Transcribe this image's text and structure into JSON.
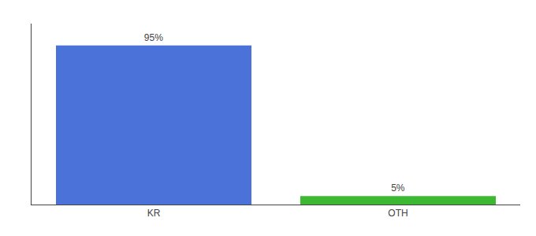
{
  "chart_data": {
    "type": "bar",
    "categories": [
      "KR",
      "OTH"
    ],
    "values": [
      95,
      5
    ],
    "value_labels": [
      "95%",
      "5%"
    ],
    "colors": [
      "#4b72d9",
      "#3cb832"
    ],
    "ylim": [
      0,
      108
    ],
    "grid": false,
    "data_labels": true,
    "tick_labels": "x"
  }
}
